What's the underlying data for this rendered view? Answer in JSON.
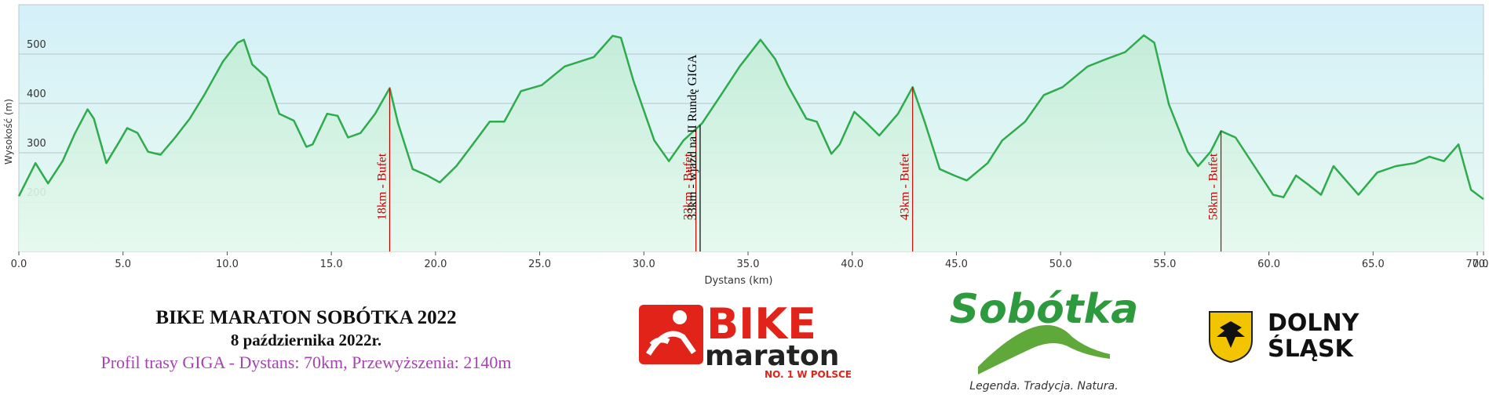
{
  "chart_data": {
    "type": "line",
    "x_label": "Dystans  (km)",
    "y_label": "Wysokość (m)",
    "x": [
      0,
      0.8,
      1.4,
      2.1,
      2.7,
      3.3,
      3.6,
      4.2,
      4.8,
      5.2,
      5.7,
      6.2,
      6.8,
      7.5,
      8.2,
      8.9,
      9.8,
      10.5,
      10.8,
      11.2,
      11.9,
      12.5,
      13.2,
      13.8,
      14.1,
      14.8,
      15.3,
      15.8,
      16.4,
      17.1,
      17.8,
      18.2,
      18.9,
      19.6,
      20.2,
      21.0,
      21.7,
      22.6,
      23.3,
      24.1,
      25.1,
      26.2,
      27.6,
      28.5,
      28.9,
      29.5,
      30.5,
      31.2,
      31.9,
      32.8,
      33.7,
      34.6,
      35.6,
      36.3,
      36.9,
      37.8,
      38.3,
      39.0,
      39.4,
      40.1,
      40.7,
      41.3,
      42.2,
      42.9,
      43.5,
      44.2,
      44.9,
      45.5,
      46.5,
      47.2,
      48.3,
      49.2,
      50.1,
      51.3,
      52.2,
      53.1,
      54.0,
      54.5,
      55.2,
      56.1,
      56.6,
      57.2,
      57.7,
      58.4,
      59.3,
      60.2,
      60.7,
      61.3,
      61.9,
      62.5,
      63.1,
      63.7,
      64.3,
      65.2,
      66.1,
      67.0,
      67.7,
      68.4,
      69.1,
      69.7,
      70.3
    ],
    "values": [
      212,
      279,
      238,
      283,
      340,
      388,
      369,
      279,
      321,
      350,
      340,
      302,
      296,
      331,
      369,
      417,
      485,
      523,
      529,
      479,
      452,
      379,
      365,
      312,
      317,
      379,
      375,
      331,
      340,
      379,
      431,
      360,
      267,
      254,
      240,
      273,
      312,
      363,
      363,
      425,
      437,
      475,
      494,
      537,
      533,
      446,
      325,
      283,
      325,
      360,
      417,
      475,
      529,
      490,
      437,
      369,
      363,
      298,
      317,
      383,
      360,
      335,
      379,
      433,
      360,
      267,
      254,
      244,
      279,
      325,
      363,
      417,
      433,
      475,
      490,
      504,
      538,
      523,
      398,
      302,
      273,
      302,
      344,
      331,
      273,
      215,
      210,
      254,
      235,
      215,
      273,
      244,
      215,
      260,
      273,
      279,
      292,
      283,
      317,
      225,
      206
    ],
    "color": "#2eab4a",
    "xlim": [
      0,
      70.3
    ],
    "ylim": [
      100,
      600
    ],
    "xticks": [
      {
        "value": 0,
        "label": "0.0"
      },
      {
        "value": 5,
        "label": "5.0"
      },
      {
        "value": 10,
        "label": "10.0"
      },
      {
        "value": 15,
        "label": "15.0"
      },
      {
        "value": 20,
        "label": "20.0"
      },
      {
        "value": 25,
        "label": "25.0"
      },
      {
        "value": 30,
        "label": "30.0"
      },
      {
        "value": 35,
        "label": "35.0"
      },
      {
        "value": 40,
        "label": "40.0"
      },
      {
        "value": 45,
        "label": "45.0"
      },
      {
        "value": 50,
        "label": "50.0"
      },
      {
        "value": 55,
        "label": "55.0"
      },
      {
        "value": 60,
        "label": "60.0"
      },
      {
        "value": 65,
        "label": "65.0"
      },
      {
        "value": 70,
        "label": "70.0"
      },
      70.3
    ],
    "yticks": [
      200,
      300,
      400,
      500
    ],
    "grid": true,
    "annotations": [
      {
        "x": 17.8,
        "label": "18km - Bufet",
        "color": "#c00000"
      },
      {
        "x": 32.5,
        "label": "33km - Bufet",
        "color": "#c00000"
      },
      {
        "x": 32.7,
        "label": "33km - wjazd na II Rundę GIGA",
        "color": "#000000"
      },
      {
        "x": 42.9,
        "label": "43km - Bufet",
        "color": "#c00000"
      },
      {
        "x": 57.7,
        "label": "58km - Bufet",
        "color": "#c00000"
      }
    ]
  },
  "footer": {
    "title": "BIKE MARATON SOBÓTKA 2022",
    "date": "8 października 2022r.",
    "subtitle": "Profil trasy GIGA - Dystans: 70km, Przewyższenia: 2140m"
  },
  "logos": {
    "bike": "BIKE",
    "maraton": "maraton",
    "bike_tagline": "NO. 1 W POLSCE",
    "sobotka": "Sobótka",
    "sobotka_tagline": "Legenda. Tradycja. Natura.",
    "dolny": "DOLNY",
    "slask": "ŚLĄSK"
  }
}
